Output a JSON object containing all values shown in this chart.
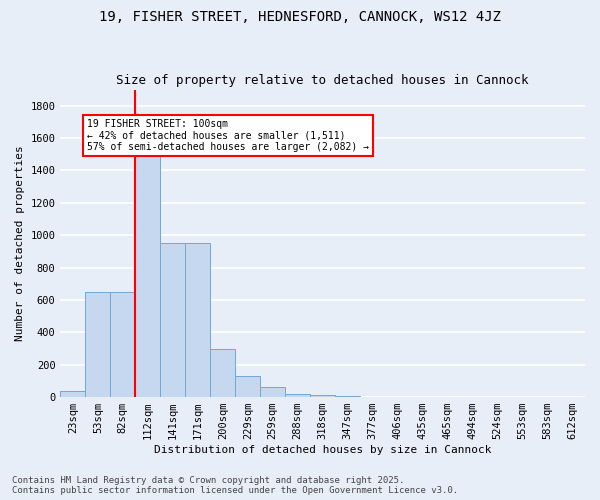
{
  "title": "19, FISHER STREET, HEDNESFORD, CANNOCK, WS12 4JZ",
  "subtitle": "Size of property relative to detached houses in Cannock",
  "xlabel": "Distribution of detached houses by size in Cannock",
  "ylabel": "Number of detached properties",
  "categories": [
    "23sqm",
    "53sqm",
    "82sqm",
    "112sqm",
    "141sqm",
    "171sqm",
    "200sqm",
    "229sqm",
    "259sqm",
    "288sqm",
    "318sqm",
    "347sqm",
    "377sqm",
    "406sqm",
    "435sqm",
    "465sqm",
    "494sqm",
    "524sqm",
    "553sqm",
    "583sqm",
    "612sqm"
  ],
  "values": [
    40,
    650,
    650,
    1500,
    950,
    950,
    295,
    130,
    60,
    20,
    10,
    5,
    0,
    0,
    0,
    0,
    0,
    0,
    0,
    0,
    0
  ],
  "bar_color": "#c5d8f0",
  "bar_edge_color": "#6fa8d8",
  "vline_index": 3,
  "vline_color": "red",
  "annotation_text": "19 FISHER STREET: 100sqm\n← 42% of detached houses are smaller (1,511)\n57% of semi-detached houses are larger (2,082) →",
  "box_color": "white",
  "box_edge_color": "red",
  "ylim": [
    0,
    1900
  ],
  "yticks": [
    0,
    200,
    400,
    600,
    800,
    1000,
    1200,
    1400,
    1600,
    1800
  ],
  "background_color": "#e8eef8",
  "grid_color": "white",
  "footer_line1": "Contains HM Land Registry data © Crown copyright and database right 2025.",
  "footer_line2": "Contains public sector information licensed under the Open Government Licence v3.0.",
  "title_fontsize": 10,
  "subtitle_fontsize": 9,
  "xlabel_fontsize": 8,
  "ylabel_fontsize": 8,
  "tick_fontsize": 7.5,
  "footer_fontsize": 6.5
}
